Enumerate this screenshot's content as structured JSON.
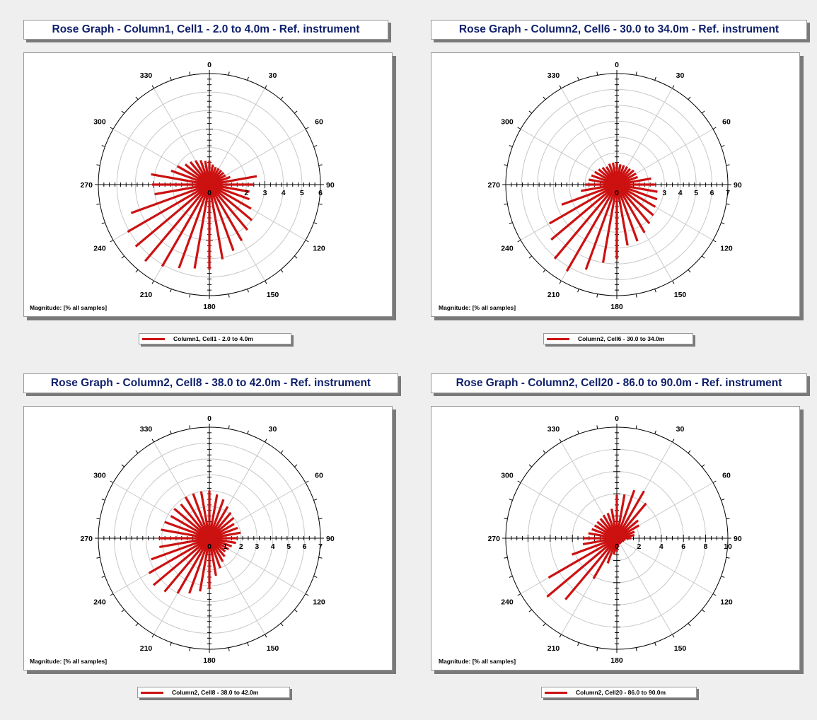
{
  "colors": {
    "series": "#cc1111",
    "title_text": "#0e1f6b",
    "background": "#efefef"
  },
  "magnitude_label": "Magnitude: [% all samples]",
  "chart_data": [
    {
      "type": "rose",
      "title": "Rose Graph - Column1, Cell1 - 2.0 to 4.0m - Ref. instrument",
      "legend": "Column1, Cell1 - 2.0 to 4.0m",
      "r_max": 6,
      "r_ticks": [
        0,
        1,
        2,
        3,
        4,
        5,
        6
      ],
      "r_tick_labels": [
        "0",
        "",
        "2",
        "3",
        "4",
        "5",
        "6"
      ],
      "angle_labels": [
        "0",
        "30",
        "60",
        "90",
        "120",
        "150",
        "180",
        "210",
        "240",
        "270",
        "300",
        "330"
      ],
      "directions": [
        0,
        10,
        20,
        30,
        40,
        50,
        60,
        70,
        80,
        90,
        100,
        110,
        120,
        130,
        140,
        150,
        160,
        170,
        180,
        190,
        200,
        210,
        220,
        230,
        240,
        250,
        260,
        270,
        280,
        290,
        300,
        310,
        320,
        330,
        340,
        350
      ],
      "values": [
        1.3,
        1.1,
        1.0,
        1.0,
        1.0,
        1.0,
        1.0,
        1.2,
        2.6,
        2.4,
        2.2,
        2.3,
        2.6,
        3.0,
        3.2,
        3.5,
        3.8,
        4.1,
        4.6,
        4.6,
        4.8,
        5.1,
        5.4,
        5.2,
        5.1,
        4.5,
        3.0,
        3.1,
        3.2,
        2.2,
        2.0,
        1.7,
        1.6,
        1.5,
        1.4,
        1.3
      ]
    },
    {
      "type": "rose",
      "title": "Rose Graph - Column2, Cell6 - 30.0 to 34.0m - Ref. instrument",
      "legend": "Column2, Cell6 - 30.0 to 34.0m",
      "r_max": 7,
      "r_ticks": [
        0,
        1,
        2,
        3,
        4,
        5,
        6,
        7
      ],
      "r_tick_labels": [
        "0",
        "",
        "",
        "3",
        "4",
        "5",
        "6",
        "7"
      ],
      "angle_labels": [
        "0",
        "30",
        "60",
        "90",
        "120",
        "150",
        "180",
        "210",
        "240",
        "270",
        "300",
        "330"
      ],
      "directions": [
        0,
        10,
        20,
        30,
        40,
        50,
        60,
        70,
        80,
        90,
        100,
        110,
        120,
        130,
        140,
        150,
        160,
        170,
        180,
        190,
        200,
        210,
        220,
        230,
        240,
        250,
        260,
        270,
        280,
        290,
        300,
        310,
        320,
        330,
        340,
        350
      ],
      "values": [
        1.4,
        1.3,
        1.3,
        1.3,
        1.3,
        1.4,
        1.4,
        1.4,
        2.2,
        2.4,
        2.6,
        2.7,
        2.8,
        3.0,
        3.2,
        3.5,
        3.8,
        3.9,
        4.7,
        5.0,
        5.7,
        6.3,
        6.1,
        5.4,
        4.9,
        3.7,
        2.3,
        2.0,
        1.8,
        1.7,
        1.6,
        1.5,
        1.4,
        1.3,
        1.4,
        1.4
      ]
    },
    {
      "type": "rose",
      "title": "Rose Graph - Column2, Cell8 - 38.0 to 42.0m - Ref. instrument",
      "legend": "Column2, Cell8 - 38.0 to 42.0m",
      "r_max": 7,
      "r_ticks": [
        0,
        1,
        2,
        3,
        4,
        5,
        6,
        7
      ],
      "r_tick_labels": [
        "0",
        "1",
        "2",
        "3",
        "4",
        "5",
        "6",
        "7"
      ],
      "angle_labels": [
        "0",
        "30",
        "60",
        "90",
        "120",
        "150",
        "180",
        "210",
        "240",
        "270",
        "300",
        "330"
      ],
      "directions": [
        0,
        10,
        20,
        30,
        40,
        50,
        60,
        70,
        80,
        90,
        100,
        110,
        120,
        130,
        140,
        150,
        160,
        170,
        180,
        190,
        200,
        210,
        220,
        230,
        240,
        250,
        260,
        270,
        280,
        290,
        300,
        310,
        320,
        330,
        340,
        350
      ],
      "values": [
        3.0,
        2.8,
        2.6,
        2.3,
        2.1,
        2.0,
        1.8,
        1.9,
        2.0,
        1.8,
        1.7,
        1.5,
        1.4,
        1.3,
        1.5,
        1.7,
        2.0,
        2.4,
        3.2,
        3.4,
        3.7,
        4.0,
        4.4,
        4.6,
        4.4,
        3.9,
        3.2,
        3.2,
        3.1,
        3.0,
        2.8,
        2.9,
        2.8,
        3.0,
        3.0,
        3.0
      ]
    },
    {
      "type": "rose",
      "title": "Rose Graph - Column2, Cell20 - 86.0 to 90.0m - Ref. instrument",
      "legend": "Column2, Cell20 - 86.0 to 90.0m",
      "r_max": 10,
      "r_ticks": [
        0,
        2,
        4,
        6,
        8,
        10
      ],
      "r_tick_labels": [
        "0",
        "2",
        "4",
        "6",
        "8",
        "10"
      ],
      "angle_labels": [
        "0",
        "30",
        "60",
        "90",
        "120",
        "150",
        "180",
        "210",
        "240",
        "270",
        "300",
        "330"
      ],
      "directions": [
        0,
        10,
        20,
        30,
        40,
        50,
        60,
        70,
        80,
        90,
        100,
        110,
        120,
        130,
        140,
        150,
        160,
        170,
        180,
        190,
        200,
        210,
        220,
        230,
        240,
        250,
        260,
        270,
        280,
        290,
        300,
        310,
        320,
        330,
        340,
        350
      ],
      "values": [
        3.9,
        4.0,
        4.6,
        4.9,
        4.1,
        2.5,
        2.3,
        1.7,
        1.6,
        1.3,
        0.8,
        0.7,
        0.6,
        0.6,
        0.6,
        0.6,
        0.6,
        0.8,
        1.2,
        1.5,
        2.4,
        4.2,
        7.2,
        8.2,
        7.1,
        4.3,
        3.1,
        3.0,
        2.6,
        2.4,
        2.3,
        2.3,
        2.3,
        2.4,
        2.4,
        2.7
      ]
    }
  ]
}
